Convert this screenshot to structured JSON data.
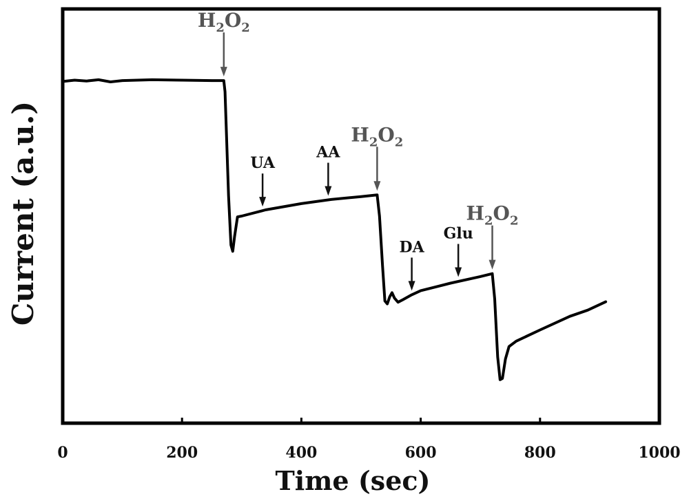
{
  "chart_data": {
    "type": "line",
    "title": "",
    "xlabel": "Time (sec)",
    "ylabel": "Current (a.u.)",
    "xlim": [
      0,
      1000
    ],
    "ylim": [
      0,
      100
    ],
    "x_ticks": [
      "0",
      "200",
      "400",
      "600",
      "800",
      "1000"
    ],
    "x_tick_values": [
      0,
      200,
      400,
      600,
      800,
      1000
    ],
    "grid": false,
    "legend": "none",
    "line_color": "#000000",
    "series": [
      {
        "values": [
          [
            0,
            82.5
          ],
          [
            20,
            82.8
          ],
          [
            40,
            82.6
          ],
          [
            60,
            82.9
          ],
          [
            80,
            82.4
          ],
          [
            100,
            82.7
          ],
          [
            150,
            82.9
          ],
          [
            200,
            82.8
          ],
          [
            250,
            82.7
          ],
          [
            270,
            82.7
          ],
          [
            272,
            80
          ],
          [
            278,
            55
          ],
          [
            282,
            43
          ],
          [
            285,
            41.5
          ],
          [
            288,
            45
          ],
          [
            293,
            49.8
          ],
          [
            300,
            50
          ],
          [
            340,
            51.5
          ],
          [
            400,
            53
          ],
          [
            450,
            54
          ],
          [
            500,
            54.7
          ],
          [
            527,
            55.1
          ],
          [
            531,
            50
          ],
          [
            536,
            38
          ],
          [
            540,
            29.5
          ],
          [
            544,
            28.8
          ],
          [
            548,
            30.5
          ],
          [
            552,
            31.5
          ],
          [
            556,
            30.2
          ],
          [
            562,
            29.2
          ],
          [
            570,
            29.8
          ],
          [
            585,
            31
          ],
          [
            600,
            32
          ],
          [
            650,
            33.8
          ],
          [
            700,
            35.4
          ],
          [
            720,
            36.1
          ],
          [
            724,
            30
          ],
          [
            729,
            16
          ],
          [
            733,
            10.5
          ],
          [
            737,
            10.8
          ],
          [
            742,
            15.5
          ],
          [
            748,
            18.5
          ],
          [
            760,
            19.8
          ],
          [
            800,
            22.5
          ],
          [
            850,
            25.8
          ],
          [
            880,
            27.3
          ],
          [
            910,
            29.3
          ]
        ]
      }
    ],
    "annotations": [
      {
        "label_pre": "H",
        "label_sub1": "2",
        "label_mid": "O",
        "label_sub2": "2",
        "x": 270,
        "color": "gray",
        "target_y": 82.7
      },
      {
        "label": "UA",
        "x": 335,
        "color": "black",
        "target_y": 51.3
      },
      {
        "label": "AA",
        "x": 445,
        "color": "black",
        "target_y": 53.9
      },
      {
        "label_pre": "H",
        "label_sub1": "2",
        "label_mid": "O",
        "label_sub2": "2",
        "x": 527,
        "color": "gray",
        "target_y": 55.1
      },
      {
        "label": "DA",
        "x": 585,
        "color": "black",
        "target_y": 31
      },
      {
        "label": "Glu",
        "x": 663,
        "color": "black",
        "target_y": 34.3
      },
      {
        "label_pre": "H",
        "label_sub1": "2",
        "label_mid": "O",
        "label_sub2": "2",
        "x": 720,
        "color": "gray",
        "target_y": 36.1
      }
    ]
  }
}
